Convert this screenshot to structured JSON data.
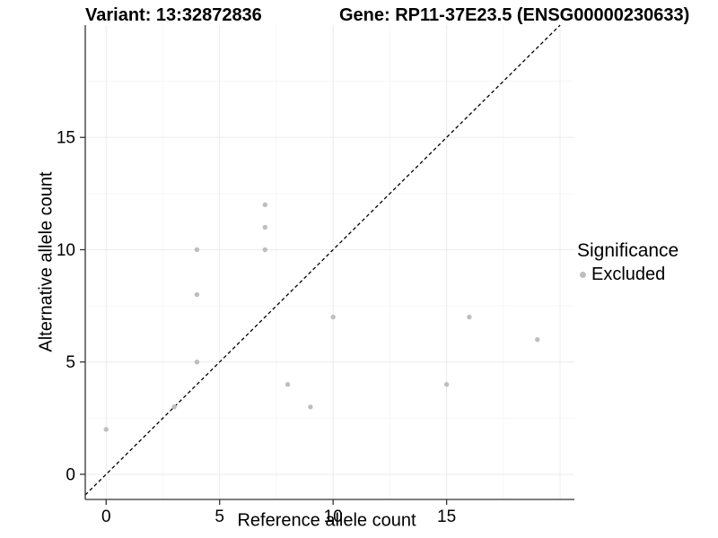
{
  "header": {
    "variant_title": "Variant: 13:32872836",
    "gene_title": "Gene: RP11-37E23.5 (ENSG00000230633)"
  },
  "legend": {
    "title": "Significance",
    "items": [
      {
        "label": "Excluded",
        "color": "#bebebe"
      }
    ]
  },
  "chart_data": {
    "type": "scatter",
    "title": "",
    "xlabel": "Reference allele count",
    "ylabel": "Alternative allele count",
    "xlim": [
      -0.92,
      20.63
    ],
    "ylim": [
      -1.12,
      20.0
    ],
    "xticks": [
      0,
      5,
      10,
      15
    ],
    "yticks": [
      0,
      5,
      10,
      15
    ],
    "xgrid_major": [
      0,
      5,
      10,
      15,
      20
    ],
    "xgrid_minor": [
      2.5,
      7.5,
      12.5,
      17.5
    ],
    "ygrid_major": [
      0,
      5,
      10,
      15
    ],
    "ygrid_minor": [
      2.5,
      7.5,
      12.5,
      17.5
    ],
    "grid": true,
    "legend_position": "right",
    "reference_line": {
      "type": "identity",
      "slope": 1,
      "intercept": 0,
      "style": "dashed",
      "color": "#000000"
    },
    "series": [
      {
        "name": "Excluded",
        "color": "#bebebe",
        "points": [
          [
            0,
            2
          ],
          [
            3,
            3
          ],
          [
            4,
            5
          ],
          [
            4,
            8
          ],
          [
            4,
            10
          ],
          [
            7,
            10
          ],
          [
            7,
            11
          ],
          [
            7,
            12
          ],
          [
            8,
            4
          ],
          [
            9,
            3
          ],
          [
            10,
            7
          ],
          [
            15,
            4
          ],
          [
            16,
            7
          ],
          [
            19,
            6
          ]
        ]
      }
    ],
    "colors": {
      "grid_major": "#ebebeb",
      "grid_minor": "#f6f6f6",
      "axis_line": "#333333",
      "point": "#bebebe",
      "text": "#000000"
    }
  }
}
